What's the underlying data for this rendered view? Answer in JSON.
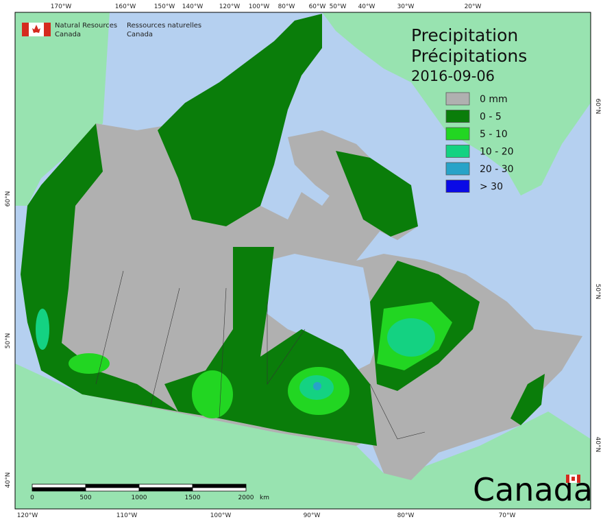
{
  "header": {
    "agency_en": "Natural Resources",
    "agency_en_2": "Canada",
    "agency_fr": "Ressources naturelles",
    "agency_fr_2": "Canada"
  },
  "title": {
    "en": "Precipitation",
    "fr": "Précipitations",
    "date": "2016-09-06"
  },
  "legend": [
    {
      "label": "0 mm",
      "color": "#b0b0b0"
    },
    {
      "label": "0 - 5",
      "color": "#0a7d0a"
    },
    {
      "label": "5 - 10",
      "color": "#22d622"
    },
    {
      "label": "10 - 20",
      "color": "#14d282"
    },
    {
      "label": "20 - 30",
      "color": "#27a3c8"
    },
    {
      "label": "> 30",
      "color": "#0a0ae6"
    }
  ],
  "graticule": {
    "top": [
      "170°W",
      "160°W",
      "150°W",
      "140°W",
      "120°W",
      "100°W",
      "80°W",
      "60°W",
      "50°W",
      "40°W",
      "30°W",
      "20°W"
    ],
    "bottom": [
      "120°W",
      "110°W",
      "100°W",
      "90°W",
      "80°W",
      "70°W"
    ],
    "left": [
      "60°N",
      "50°N",
      "40°N"
    ],
    "right": [
      "60°N",
      "50°N",
      "40°N"
    ]
  },
  "scale_bar": {
    "labels": [
      "0",
      "500",
      "1000",
      "1500",
      "2000"
    ],
    "unit": "km"
  },
  "wordmark": "Canada"
}
